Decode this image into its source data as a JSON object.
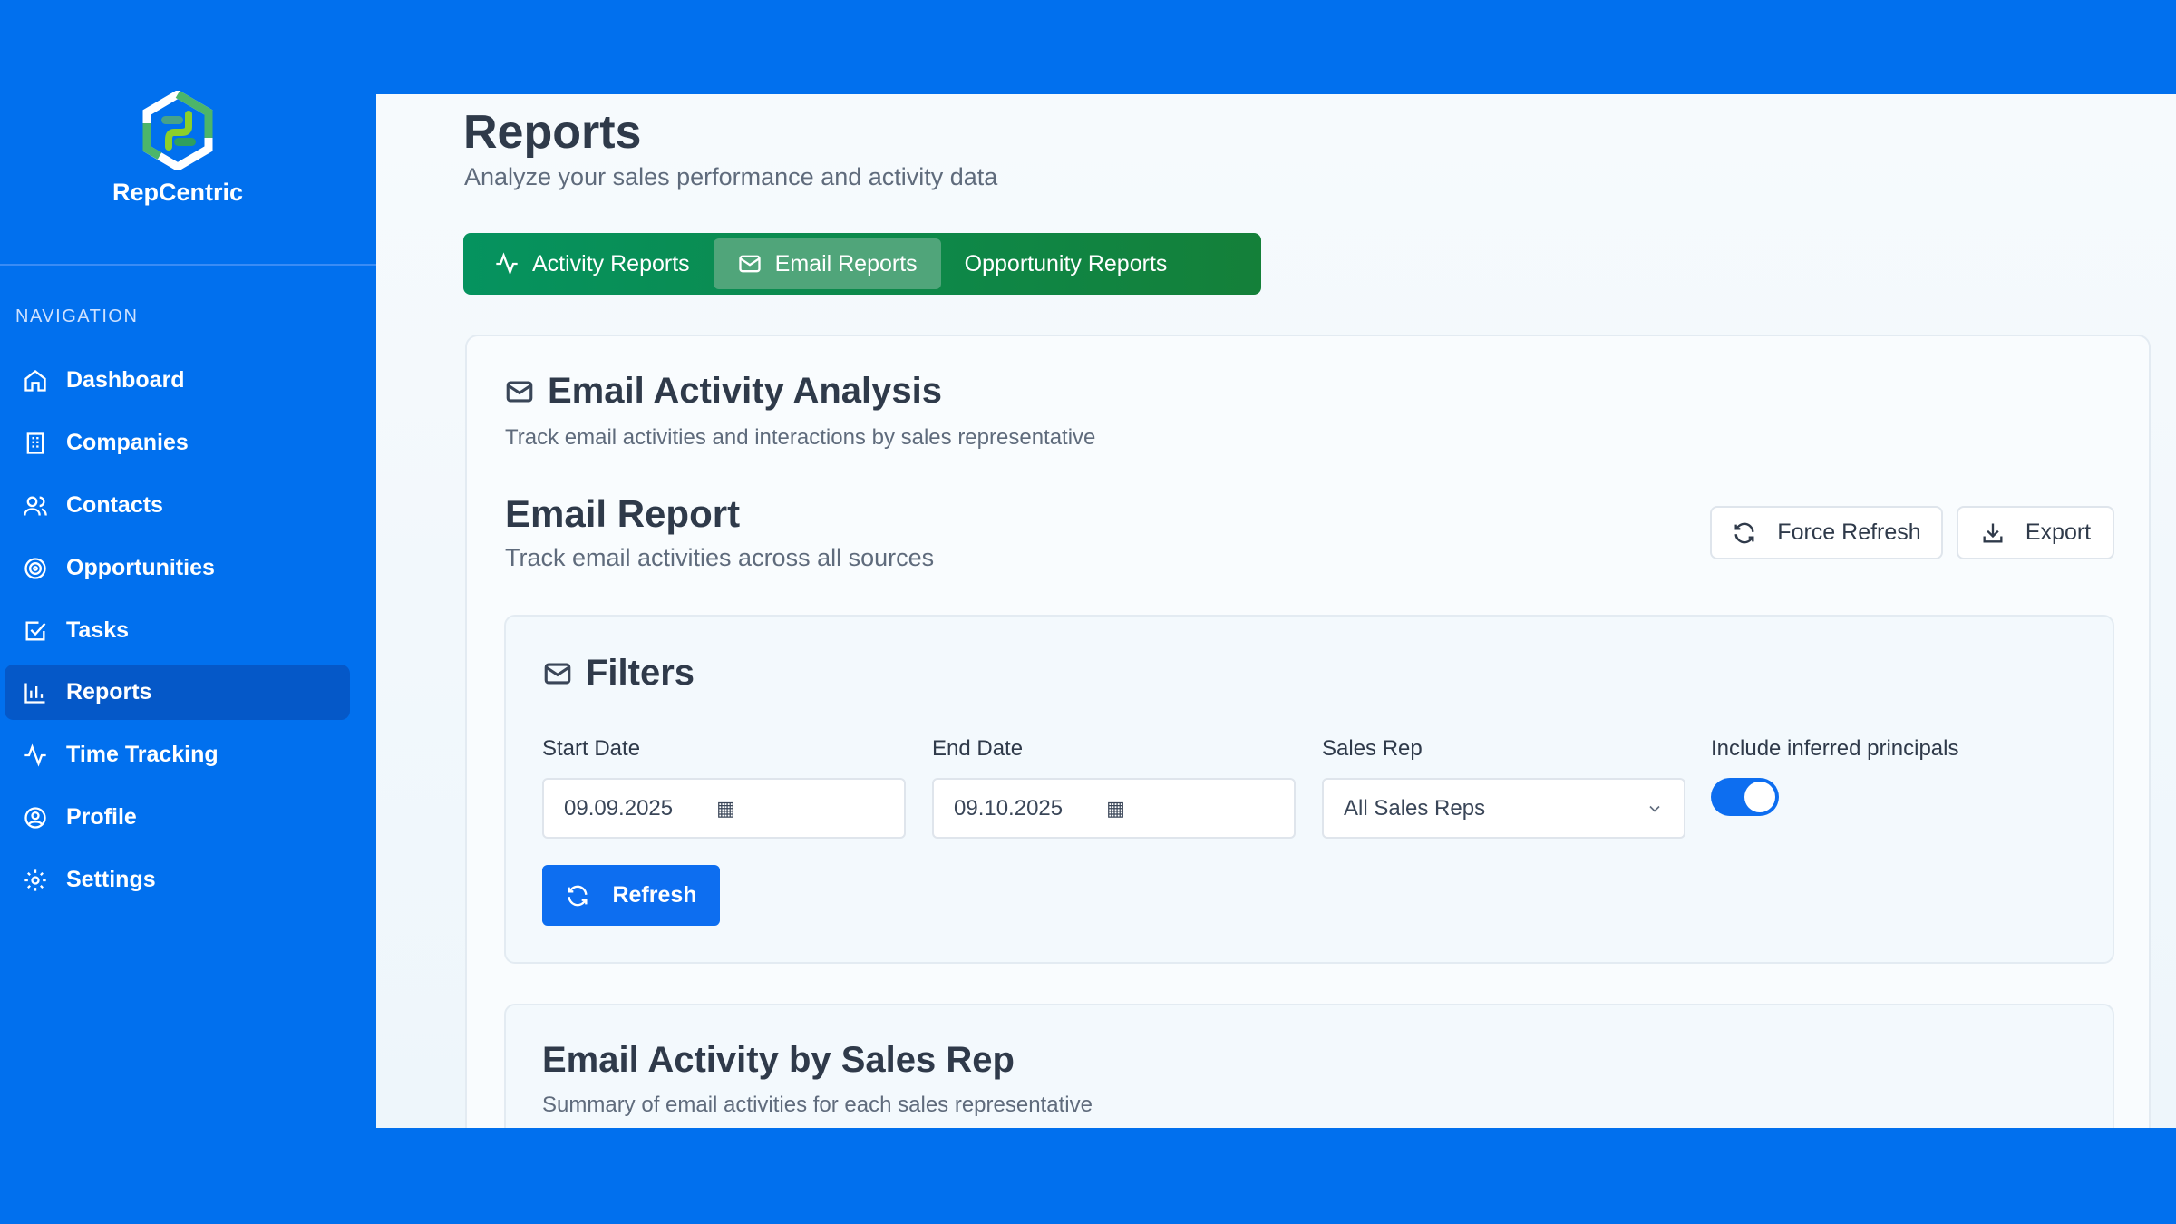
{
  "brand": {
    "name": "RepCentric"
  },
  "sidebar": {
    "section_label": "NAVIGATION",
    "items": [
      {
        "label": "Dashboard",
        "icon": "home-icon"
      },
      {
        "label": "Companies",
        "icon": "building-icon"
      },
      {
        "label": "Contacts",
        "icon": "users-icon"
      },
      {
        "label": "Opportunities",
        "icon": "target-icon"
      },
      {
        "label": "Tasks",
        "icon": "checkbox-icon"
      },
      {
        "label": "Reports",
        "icon": "bar-chart-icon",
        "active": true
      },
      {
        "label": "Time Tracking",
        "icon": "activity-icon"
      },
      {
        "label": "Profile",
        "icon": "user-circle-icon"
      },
      {
        "label": "Settings",
        "icon": "gear-icon"
      }
    ]
  },
  "page": {
    "title": "Reports",
    "subtitle": "Analyze your sales performance and activity data"
  },
  "tabs": [
    {
      "label": "Activity Reports"
    },
    {
      "label": "Email Reports",
      "active": true
    },
    {
      "label": "Opportunity Reports"
    }
  ],
  "analysis": {
    "title": "Email Activity Analysis",
    "subtitle": "Track email activities and interactions by sales representative"
  },
  "report": {
    "title": "Email Report",
    "subtitle": "Track email activities across all sources",
    "force_refresh": "Force Refresh",
    "export": "Export"
  },
  "filters": {
    "title": "Filters",
    "start_label": "Start Date",
    "start_value": "09.09.2025",
    "end_label": "End Date",
    "end_value": "09.10.2025",
    "rep_label": "Sales Rep",
    "rep_value": "All Sales Reps",
    "inferred_label": "Include inferred principals",
    "inferred_on": true,
    "refresh": "Refresh"
  },
  "summary": {
    "title": "Email Activity by Sales Rep",
    "subtitle": "Summary of email activities for each sales representative"
  },
  "colors": {
    "brand_blue": "#0170ee",
    "tab_green": "#05935f",
    "primary_button": "#0d6ef0"
  }
}
